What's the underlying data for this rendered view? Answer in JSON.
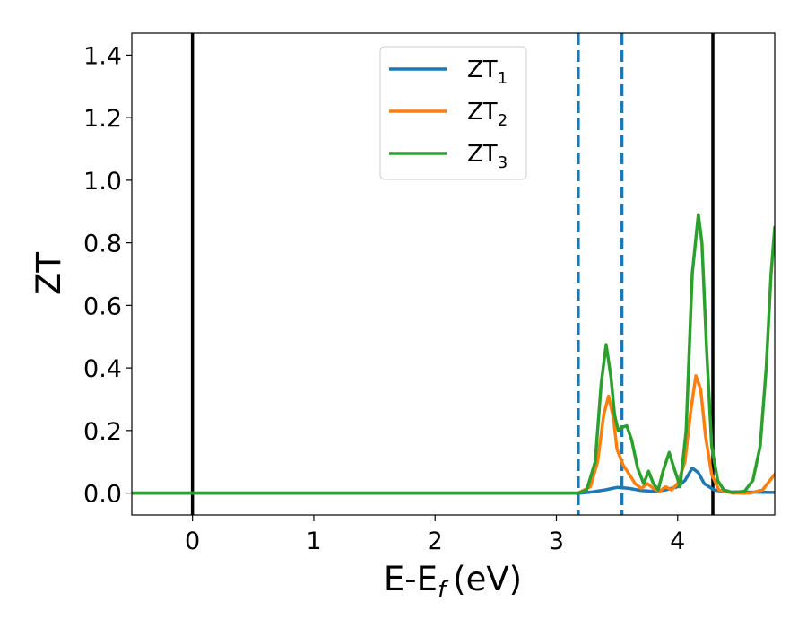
{
  "chart_data": {
    "type": "line",
    "xlabel": "E-E",
    "xlabel_subscript": "f",
    "xlabel_unit": "(eV)",
    "ylabel": "ZT",
    "xlim": [
      -0.5,
      4.8
    ],
    "ylim": [
      -0.07,
      1.47
    ],
    "xticks": [
      0,
      1,
      2,
      3,
      4
    ],
    "yticks": [
      0.0,
      0.2,
      0.4,
      0.6,
      0.8,
      1.0,
      1.2,
      1.4
    ],
    "xtick_labels": [
      "0",
      "1",
      "2",
      "3",
      "4"
    ],
    "ytick_labels": [
      "0.0",
      "0.2",
      "0.4",
      "0.6",
      "0.8",
      "1.0",
      "1.2",
      "1.4"
    ],
    "grid": false,
    "legend_position": "top-center",
    "vertical_lines": [
      {
        "x": 0.0,
        "style": "solid",
        "color": "#000000"
      },
      {
        "x": 4.29,
        "style": "solid",
        "color": "#000000"
      },
      {
        "x": 3.18,
        "style": "dashed",
        "color": "#1f77b4"
      },
      {
        "x": 3.54,
        "style": "dashed",
        "color": "#1f77b4"
      }
    ],
    "series": [
      {
        "name": "ZT",
        "subscript": "1",
        "color": "#1f77b4",
        "points": [
          [
            -0.5,
            0
          ],
          [
            3.2,
            0
          ],
          [
            3.3,
            0.004
          ],
          [
            3.4,
            0.01
          ],
          [
            3.5,
            0.018
          ],
          [
            3.6,
            0.015
          ],
          [
            3.7,
            0.008
          ],
          [
            3.8,
            0.005
          ],
          [
            3.9,
            0.01
          ],
          [
            4.0,
            0.02
          ],
          [
            4.06,
            0.04
          ],
          [
            4.12,
            0.08
          ],
          [
            4.17,
            0.065
          ],
          [
            4.22,
            0.03
          ],
          [
            4.3,
            0.01
          ],
          [
            4.4,
            0.004
          ],
          [
            4.8,
            0.002
          ]
        ]
      },
      {
        "name": "ZT",
        "subscript": "2",
        "color": "#ff7f0e",
        "points": [
          [
            -0.5,
            0
          ],
          [
            3.18,
            0
          ],
          [
            3.28,
            0.02
          ],
          [
            3.34,
            0.1
          ],
          [
            3.39,
            0.25
          ],
          [
            3.43,
            0.31
          ],
          [
            3.47,
            0.24
          ],
          [
            3.5,
            0.14
          ],
          [
            3.55,
            0.09
          ],
          [
            3.6,
            0.06
          ],
          [
            3.65,
            0.03
          ],
          [
            3.7,
            0.015
          ],
          [
            3.75,
            0.03
          ],
          [
            3.8,
            0.015
          ],
          [
            3.85,
            0.005
          ],
          [
            3.9,
            0.02
          ],
          [
            3.95,
            0.01
          ],
          [
            4.0,
            0.03
          ],
          [
            4.06,
            0.1
          ],
          [
            4.11,
            0.27
          ],
          [
            4.15,
            0.375
          ],
          [
            4.19,
            0.33
          ],
          [
            4.23,
            0.18
          ],
          [
            4.28,
            0.06
          ],
          [
            4.34,
            0.01
          ],
          [
            4.45,
            0.0
          ],
          [
            4.6,
            0.0
          ],
          [
            4.7,
            0.01
          ],
          [
            4.76,
            0.04
          ],
          [
            4.8,
            0.06
          ]
        ]
      },
      {
        "name": "ZT",
        "subscript": "3",
        "color": "#2ca02c",
        "points": [
          [
            -0.5,
            0
          ],
          [
            3.18,
            0
          ],
          [
            3.25,
            0.01
          ],
          [
            3.32,
            0.1
          ],
          [
            3.37,
            0.35
          ],
          [
            3.41,
            0.475
          ],
          [
            3.45,
            0.37
          ],
          [
            3.48,
            0.25
          ],
          [
            3.51,
            0.2
          ],
          [
            3.54,
            0.21
          ],
          [
            3.58,
            0.215
          ],
          [
            3.62,
            0.17
          ],
          [
            3.67,
            0.08
          ],
          [
            3.72,
            0.03
          ],
          [
            3.76,
            0.07
          ],
          [
            3.8,
            0.03
          ],
          [
            3.84,
            0.01
          ],
          [
            3.88,
            0.07
          ],
          [
            3.93,
            0.13
          ],
          [
            3.97,
            0.08
          ],
          [
            4.02,
            0.02
          ],
          [
            4.07,
            0.2
          ],
          [
            4.12,
            0.7
          ],
          [
            4.17,
            0.89
          ],
          [
            4.2,
            0.8
          ],
          [
            4.24,
            0.45
          ],
          [
            4.28,
            0.15
          ],
          [
            4.33,
            0.04
          ],
          [
            4.38,
            0.01
          ],
          [
            4.45,
            0.002
          ],
          [
            4.55,
            0.005
          ],
          [
            4.62,
            0.04
          ],
          [
            4.68,
            0.15
          ],
          [
            4.73,
            0.4
          ],
          [
            4.77,
            0.7
          ],
          [
            4.8,
            0.85
          ]
        ]
      }
    ]
  }
}
